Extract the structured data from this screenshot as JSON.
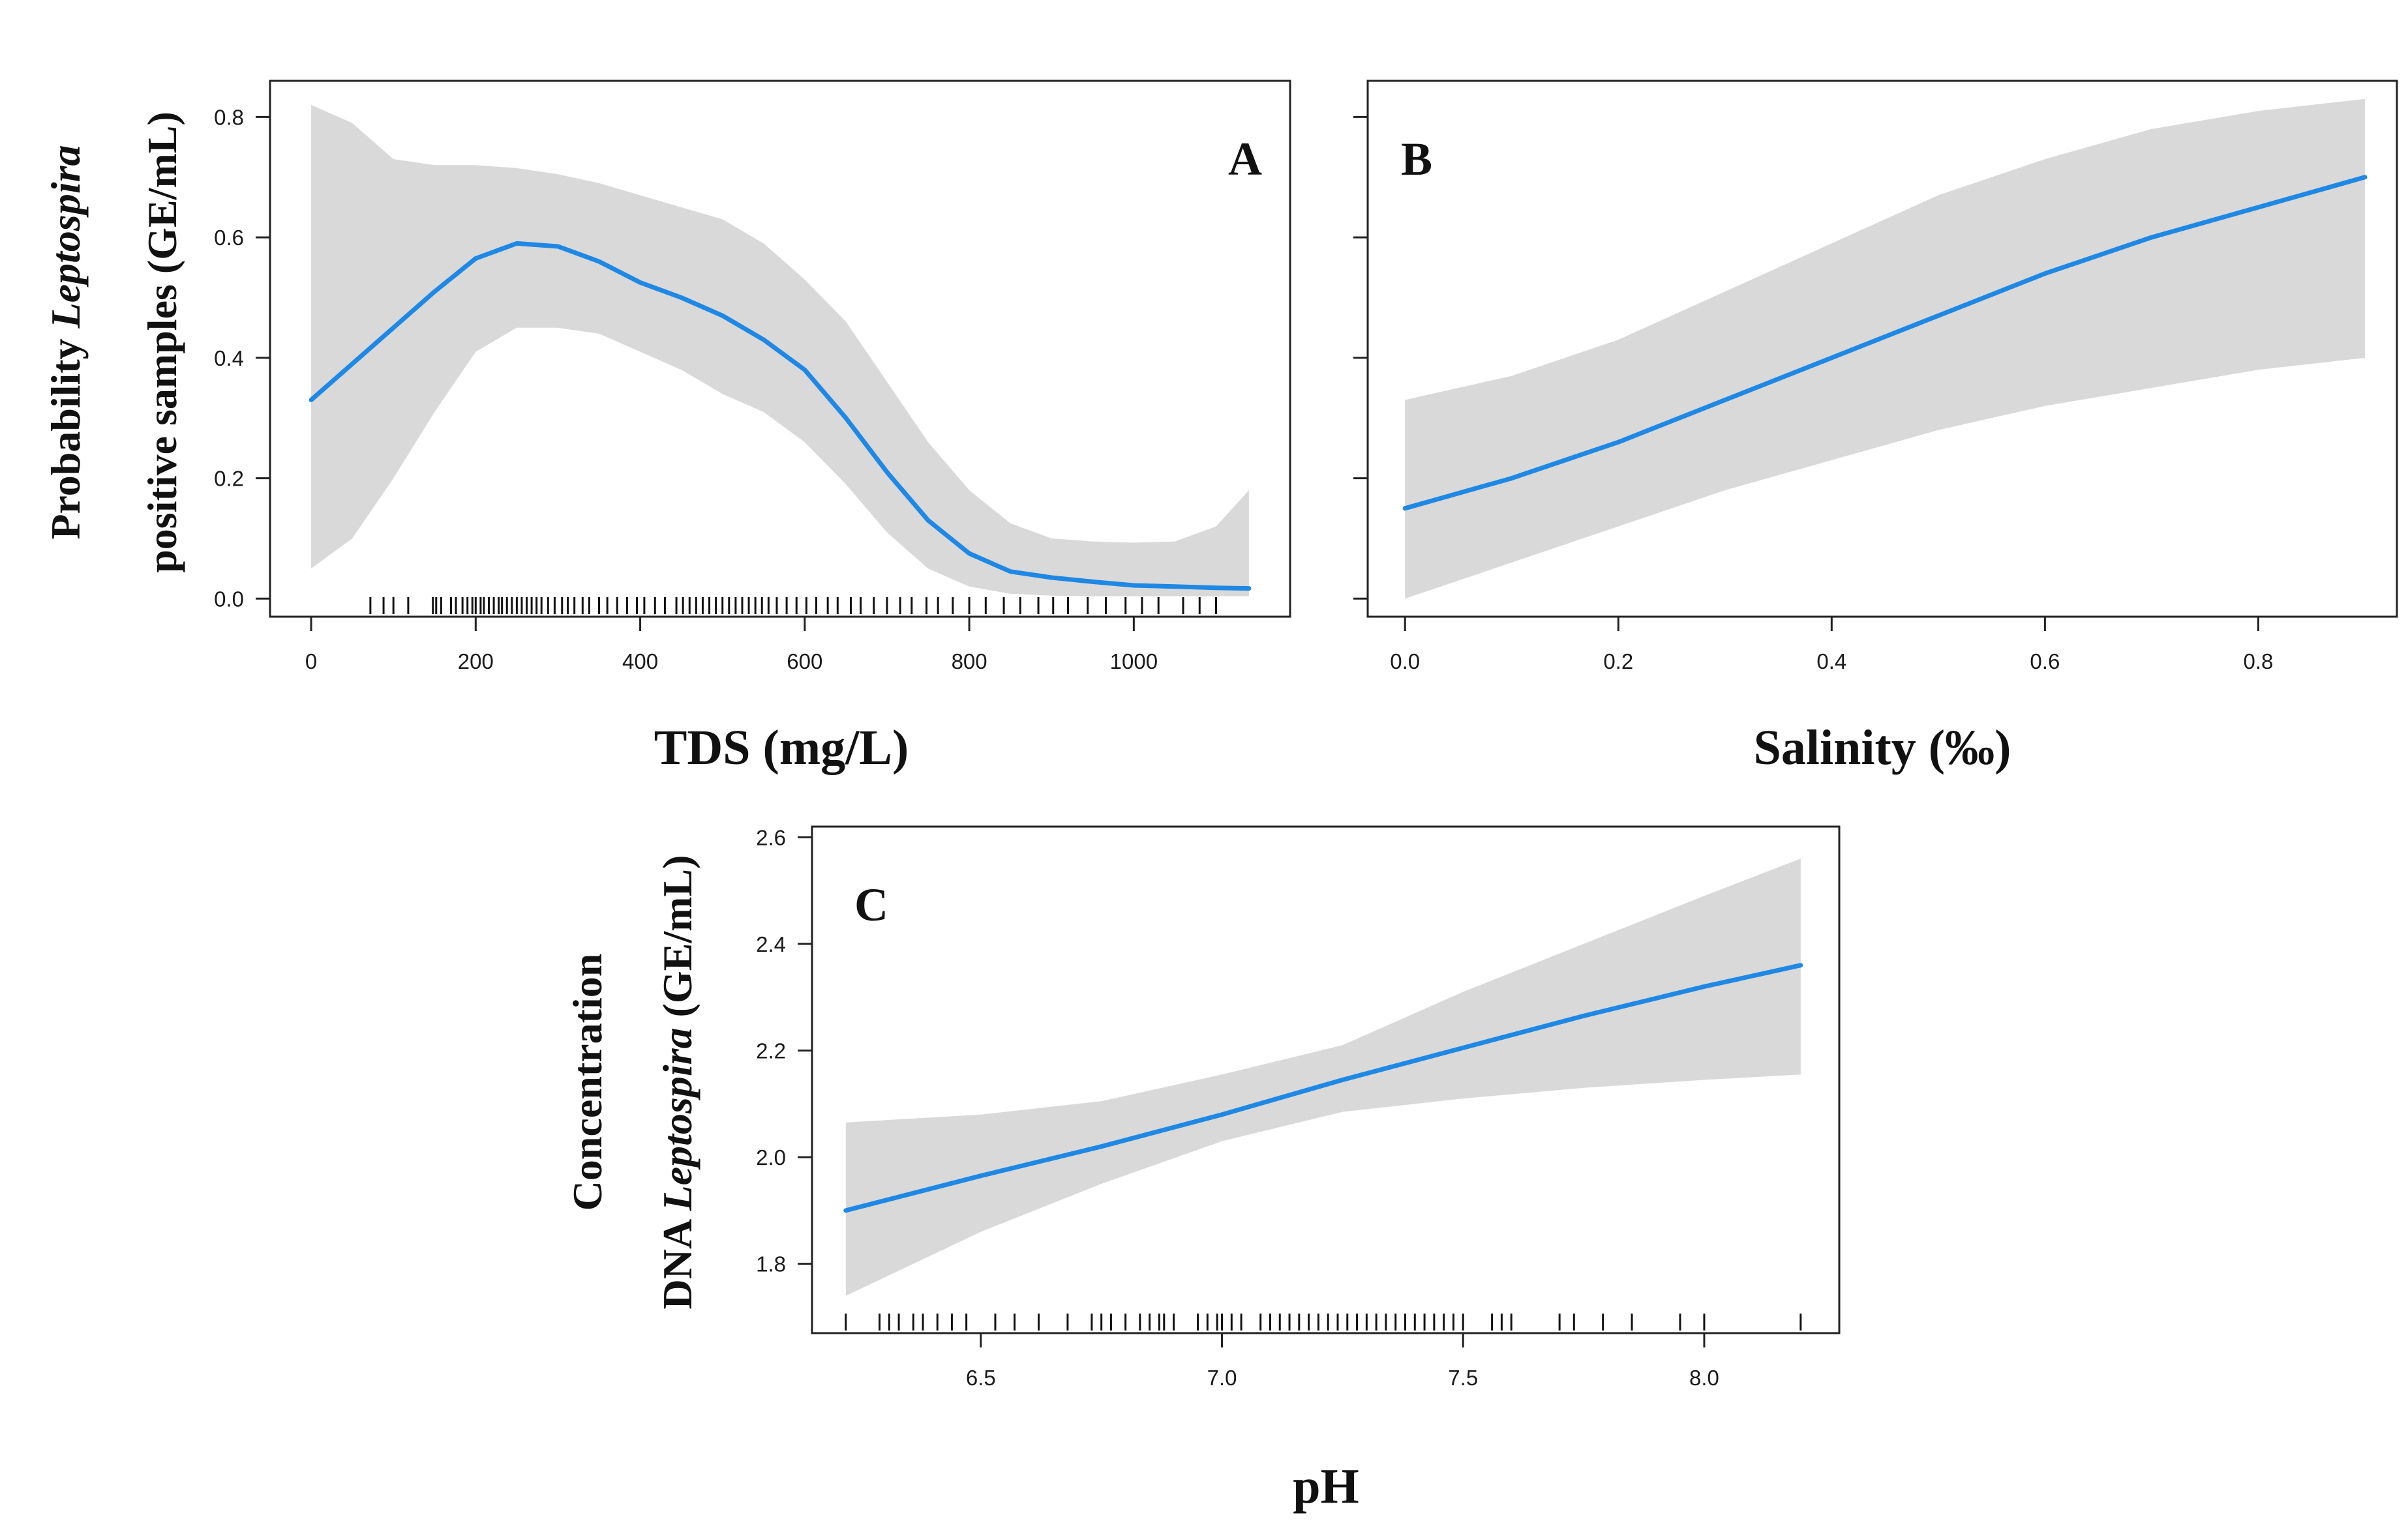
{
  "colors": {
    "line": "#1f88e5",
    "band": "#d9d9d9",
    "axis": "#222222",
    "rug": "#111111"
  },
  "chart_data": [
    {
      "panel": "A",
      "type": "line",
      "xlabel": "TDS (mg/L)",
      "ylabel_line1_parts": [
        "Probability ",
        "Leptospira"
      ],
      "ylabel_line2": "positive samples (GE/mL)",
      "xlim": [
        -50,
        1190
      ],
      "ylim": [
        -0.03,
        0.86
      ],
      "xticks": [
        0,
        200,
        400,
        600,
        800,
        1000
      ],
      "xtick_labels": [
        "0",
        "200",
        "400",
        "600",
        "800",
        "1000"
      ],
      "yticks": [
        0.0,
        0.2,
        0.4,
        0.6,
        0.8
      ],
      "ytick_labels": [
        "0.0",
        "0.2",
        "0.4",
        "0.6",
        "0.8"
      ],
      "x": [
        0,
        50,
        100,
        150,
        200,
        250,
        300,
        350,
        400,
        450,
        500,
        550,
        600,
        650,
        700,
        750,
        800,
        850,
        900,
        950,
        1000,
        1050,
        1100,
        1140
      ],
      "fit": [
        0.33,
        0.39,
        0.45,
        0.51,
        0.565,
        0.59,
        0.585,
        0.56,
        0.525,
        0.5,
        0.47,
        0.43,
        0.38,
        0.3,
        0.21,
        0.13,
        0.075,
        0.045,
        0.035,
        0.028,
        0.022,
        0.02,
        0.018,
        0.017
      ],
      "lower": [
        0.05,
        0.1,
        0.2,
        0.31,
        0.41,
        0.45,
        0.45,
        0.44,
        0.41,
        0.38,
        0.34,
        0.31,
        0.26,
        0.19,
        0.11,
        0.05,
        0.02,
        0.008,
        0.005,
        0.004,
        0.004,
        0.004,
        0.004,
        0.004
      ],
      "upper": [
        0.82,
        0.79,
        0.73,
        0.72,
        0.72,
        0.715,
        0.705,
        0.69,
        0.67,
        0.65,
        0.63,
        0.59,
        0.53,
        0.46,
        0.36,
        0.26,
        0.18,
        0.125,
        0.1,
        0.095,
        0.093,
        0.095,
        0.12,
        0.18
      ],
      "rug": [
        72,
        88,
        100,
        118,
        148,
        152,
        158,
        170,
        176,
        184,
        190,
        196,
        200,
        206,
        210,
        216,
        222,
        228,
        232,
        238,
        244,
        250,
        256,
        262,
        268,
        274,
        280,
        288,
        296,
        305,
        312,
        320,
        330,
        338,
        350,
        360,
        372,
        384,
        396,
        405,
        418,
        430,
        444,
        452,
        460,
        468,
        476,
        484,
        492,
        500,
        508,
        516,
        524,
        532,
        540,
        548,
        556,
        566,
        578,
        590,
        602,
        614,
        628,
        640,
        656,
        668,
        684,
        700,
        716,
        730,
        748,
        762,
        780,
        800,
        820,
        842,
        862,
        884,
        902,
        920,
        944,
        966,
        990,
        1010,
        1030,
        1060,
        1080,
        1100
      ],
      "annotation": "A"
    },
    {
      "panel": "B",
      "type": "line",
      "xlabel": "Salinity (‰)",
      "xlim": [
        -0.035,
        0.93
      ],
      "ylim": [
        -0.03,
        0.86
      ],
      "xticks": [
        0.0,
        0.2,
        0.4,
        0.6,
        0.8
      ],
      "xtick_labels": [
        "0.0",
        "0.2",
        "0.4",
        "0.6",
        "0.8"
      ],
      "yticks": [
        0.0,
        0.2,
        0.4,
        0.6,
        0.8
      ],
      "x": [
        0.0,
        0.1,
        0.2,
        0.3,
        0.4,
        0.5,
        0.6,
        0.7,
        0.8,
        0.9
      ],
      "fit": [
        0.15,
        0.2,
        0.26,
        0.33,
        0.4,
        0.47,
        0.54,
        0.6,
        0.65,
        0.7
      ],
      "lower": [
        0.0,
        0.06,
        0.12,
        0.18,
        0.23,
        0.28,
        0.32,
        0.35,
        0.38,
        0.4
      ],
      "upper": [
        0.33,
        0.37,
        0.43,
        0.51,
        0.59,
        0.67,
        0.73,
        0.78,
        0.81,
        0.83
      ],
      "annotation": "B"
    },
    {
      "panel": "C",
      "type": "line",
      "xlabel": "pH",
      "ylabel_line1": "Concentration",
      "ylabel_line2_parts": [
        "DNA ",
        "Leptospira",
        " (GE/mL)"
      ],
      "xlim": [
        6.15,
        8.28
      ],
      "ylim": [
        1.67,
        2.62
      ],
      "xticks": [
        6.5,
        7.0,
        7.5,
        8.0
      ],
      "xtick_labels": [
        "6.5",
        "7.0",
        "7.5",
        "8.0"
      ],
      "yticks": [
        1.8,
        2.0,
        2.2,
        2.4,
        2.6
      ],
      "ytick_labels": [
        "1.8",
        "2.0",
        "2.2",
        "2.4",
        "2.6"
      ],
      "x": [
        6.22,
        6.5,
        6.75,
        7.0,
        7.25,
        7.5,
        7.75,
        8.0,
        8.2
      ],
      "fit": [
        1.9,
        1.965,
        2.02,
        2.08,
        2.145,
        2.205,
        2.265,
        2.32,
        2.36
      ],
      "lower": [
        1.74,
        1.86,
        1.95,
        2.03,
        2.085,
        2.11,
        2.13,
        2.145,
        2.155
      ],
      "upper": [
        2.065,
        2.08,
        2.105,
        2.155,
        2.21,
        2.31,
        2.4,
        2.49,
        2.56
      ],
      "rug": [
        6.22,
        6.29,
        6.31,
        6.33,
        6.36,
        6.38,
        6.41,
        6.44,
        6.47,
        6.53,
        6.57,
        6.62,
        6.68,
        6.73,
        6.75,
        6.77,
        6.8,
        6.83,
        6.85,
        6.87,
        6.88,
        6.9,
        6.95,
        6.97,
        6.99,
        7.0,
        7.02,
        7.04,
        7.08,
        7.1,
        7.12,
        7.14,
        7.16,
        7.18,
        7.2,
        7.22,
        7.24,
        7.26,
        7.28,
        7.3,
        7.32,
        7.34,
        7.36,
        7.38,
        7.4,
        7.42,
        7.44,
        7.46,
        7.48,
        7.5,
        7.56,
        7.58,
        7.6,
        7.7,
        7.73,
        7.79,
        7.85,
        7.95,
        8.0,
        8.2
      ],
      "annotation": "C"
    }
  ]
}
